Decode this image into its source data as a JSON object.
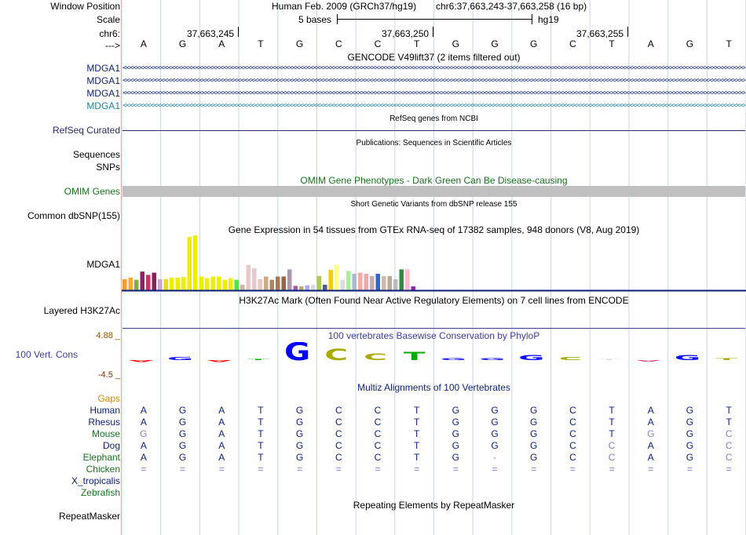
{
  "colors": {
    "grid": "#c8d4ec",
    "gene_dark": "#0a1e78",
    "gene_light": "#1a7fa0",
    "omim": "#c0c0c0",
    "phylop_label": "#3d3d9e",
    "refseq_label": "#28286e",
    "omim_label": "#17711d",
    "gaps_label": "#d08a00",
    "phylop_max": "#8a5500",
    "phylop_min": "#8a2b00"
  },
  "labels": {
    "window_position": "Window Position",
    "scale": "Scale",
    "chr": "chr6:",
    "arrow": "--->",
    "mdga1": "MDGA1",
    "refseq": "RefSeq Curated",
    "sequences": "Sequences",
    "snps": "SNPs",
    "omim": "OMIM Genes",
    "common_dbsnp": "Common dbSNP(155)",
    "gtex_gene": "MDGA1",
    "layered": "Layered H3K27Ac",
    "phylop_max": "4.88 _",
    "phylop_track": "100 Vert. Cons",
    "phylop_min": "-4.5 _",
    "gaps": "Gaps",
    "repeatmasker": "RepeatMasker"
  },
  "species": [
    {
      "name": "Human",
      "color": "#0a1e78"
    },
    {
      "name": "Rhesus",
      "color": "#0a1e78"
    },
    {
      "name": "Mouse",
      "color": "#17711d"
    },
    {
      "name": "Dog",
      "color": "#0a1e78"
    },
    {
      "name": "Elephant",
      "color": "#17711d"
    },
    {
      "name": "Chicken",
      "color": "#17711d"
    },
    {
      "name": "X_tropicalis",
      "color": "#0a1e78"
    },
    {
      "name": "Zebrafish",
      "color": "#17711d"
    }
  ],
  "header": {
    "assembly": "Human Feb. 2009 (GRCh37/hg19)",
    "position": "chr6:37,663,243-37,663,258 (16 bp)",
    "scale_text": "5 bases",
    "scale_db": "hg19",
    "coords": [
      "37,663,245",
      "37,663,250",
      "37,663,255"
    ]
  },
  "bases": [
    "A",
    "G",
    "A",
    "T",
    "G",
    "C",
    "C",
    "T",
    "G",
    "G",
    "G",
    "C",
    "T",
    "A",
    "G",
    "T"
  ],
  "tracks": {
    "gencode_title": "GENCODE V49lift37 (2 items filtered out)",
    "refseq_title": "RefSeq genes from NCBI",
    "publications_title": "Publications: Sequences in Scientific Articles",
    "omim_title": "OMIM Gene Phenotypes - Dark Green Can Be Disease-causing",
    "dbsnp_title": "Short Genetic Variants from dbSNP release 155",
    "gtex_title": "Gene Expression in 54 tissues from GTEx RNA-seq of 17382 samples, 948 donors (V8, Aug 2019)",
    "h3k27ac_title": "H3K27Ac Mark (Often Found Near Active Regulatory Elements) on 7 cell lines from ENCODE",
    "phylop_title": "100 vertebrates Basewise Conservation by PhyloP",
    "multiz_title": "Multiz Alignments of 100 Vertebrates",
    "repeat_title": "Repeating Elements by RepeatMasker"
  },
  "gtex_bars": [
    {
      "v": 0.2,
      "c": "#ff9933"
    },
    {
      "v": 0.23,
      "c": "#ffaa33"
    },
    {
      "v": 0.19,
      "c": "#88aa44"
    },
    {
      "v": 0.34,
      "c": "#8e2266"
    },
    {
      "v": 0.28,
      "c": "#cc3366"
    },
    {
      "v": 0.32,
      "c": "#882255"
    },
    {
      "v": 0.2,
      "c": "#c7a3e0"
    },
    {
      "v": 0.2,
      "c": "#eedd00"
    },
    {
      "v": 0.23,
      "c": "#eeee00"
    },
    {
      "v": 0.23,
      "c": "#eeee00"
    },
    {
      "v": 0.24,
      "c": "#eeee00"
    },
    {
      "v": 0.97,
      "c": "#eeee00"
    },
    {
      "v": 1.0,
      "c": "#eeee00"
    },
    {
      "v": 0.25,
      "c": "#eeee00"
    },
    {
      "v": 0.22,
      "c": "#eeee00"
    },
    {
      "v": 0.25,
      "c": "#eeee00"
    },
    {
      "v": 0.25,
      "c": "#eeee00"
    },
    {
      "v": 0.19,
      "c": "#eeee00"
    },
    {
      "v": 0.22,
      "c": "#eeee00"
    },
    {
      "v": 0.19,
      "c": "#44ee33"
    },
    {
      "v": 0.1,
      "c": "#c8b99a"
    },
    {
      "v": 0.46,
      "c": "#e8c8c8"
    },
    {
      "v": 0.4,
      "c": "#e8c8c8"
    },
    {
      "v": 0.2,
      "c": "#e8c8c8"
    },
    {
      "v": 0.25,
      "c": "#ccaa88"
    },
    {
      "v": 0.19,
      "c": "#aa8866"
    },
    {
      "v": 0.25,
      "c": "#aa7755"
    },
    {
      "v": 0.25,
      "c": "#996644"
    },
    {
      "v": 0.38,
      "c": "#aa99aa"
    },
    {
      "v": 0.08,
      "c": "#aa55aa"
    },
    {
      "v": 0.07,
      "c": "#bbaa66"
    },
    {
      "v": 0.09,
      "c": "#aaaaff"
    },
    {
      "v": 0.1,
      "c": "#dddddd"
    },
    {
      "v": 0.26,
      "c": "#aacc55"
    },
    {
      "v": 0.1,
      "c": "#555599"
    },
    {
      "v": 0.37,
      "c": "#f5cc00"
    },
    {
      "v": 0.46,
      "c": "#ffff88"
    },
    {
      "v": 0.19,
      "c": "#dddddd"
    },
    {
      "v": 0.35,
      "c": "#aaee99"
    },
    {
      "v": 0.3,
      "c": "#aabbcc"
    },
    {
      "v": 0.32,
      "c": "#ffaaaa"
    },
    {
      "v": 0.3,
      "c": "#eeaaaa"
    },
    {
      "v": 0.26,
      "c": "#ccaaaa"
    },
    {
      "v": 0.3,
      "c": "#3366cc"
    },
    {
      "v": 0.26,
      "c": "#ccbbaa"
    },
    {
      "v": 0.26,
      "c": "#bbaa99"
    },
    {
      "v": 0.2,
      "c": "#bbbbbb"
    },
    {
      "v": 0.38,
      "c": "#338844"
    },
    {
      "v": 0.38,
      "c": "#ffbbcc"
    },
    {
      "v": 0.07,
      "c": "#9922aa"
    }
  ],
  "phylop": [
    {
      "score": -0.6,
      "color": "#ff0000"
    },
    {
      "score": 0.8,
      "color": "#0000ff"
    },
    {
      "score": -0.6,
      "color": "#ff0000"
    },
    {
      "score": 0.2,
      "color": "#00aa00"
    },
    {
      "score": 4.8,
      "color": "#0000ff"
    },
    {
      "score": 3.0,
      "color": "#aaaa00"
    },
    {
      "score": 1.8,
      "color": "#aaaa00"
    },
    {
      "score": 2.2,
      "color": "#00aa00"
    },
    {
      "score": 0.6,
      "color": "#0000ff"
    },
    {
      "score": 0.6,
      "color": "#0000ff"
    },
    {
      "score": 1.4,
      "color": "#0000ff"
    },
    {
      "score": 0.8,
      "color": "#aaaa00"
    },
    {
      "score": 0.0,
      "color": "#dddddd"
    },
    {
      "score": -0.4,
      "color": "#cc3377"
    },
    {
      "score": 1.4,
      "color": "#0000ff"
    },
    {
      "score": 0.5,
      "color": "#aaaa00"
    }
  ],
  "alignments": {
    "Human": [
      "A",
      "G",
      "A",
      "T",
      "G",
      "C",
      "C",
      "T",
      "G",
      "G",
      "G",
      "C",
      "T",
      "A",
      "G",
      "T"
    ],
    "Rhesus": [
      "A",
      "G",
      "A",
      "T",
      "G",
      "C",
      "C",
      "T",
      "G",
      "G",
      "G",
      "C",
      "T",
      "A",
      "G",
      "T"
    ],
    "Mouse": [
      "G",
      "G",
      "A",
      "T",
      "G",
      "C",
      "C",
      "T",
      "G",
      "G",
      "G",
      "C",
      "T",
      "G",
      "G",
      "C"
    ],
    "Dog": [
      "A",
      "G",
      "A",
      "T",
      "G",
      "C",
      "C",
      "T",
      "G",
      "G",
      "G",
      "C",
      "C",
      "A",
      "G",
      "C"
    ],
    "Elephant": [
      "A",
      "G",
      "A",
      "T",
      "G",
      "C",
      "C",
      "T",
      "G",
      "-",
      "G",
      "C",
      "C",
      "A",
      "G",
      "C"
    ],
    "Chicken": [
      "=",
      "=",
      "=",
      "=",
      "=",
      "=",
      "=",
      "=",
      "=",
      "=",
      "=",
      "=",
      "=",
      "=",
      "=",
      "="
    ]
  },
  "alignment_diff": {
    "Mouse": [
      0,
      13,
      15
    ],
    "Dog": [
      12,
      15
    ],
    "Elephant": [
      9,
      12,
      15
    ]
  },
  "gene_rows": [
    {
      "label": "MDGA1",
      "color": "#0a1e78"
    },
    {
      "label": "MDGA1",
      "color": "#0a1e78"
    },
    {
      "label": "MDGA1",
      "color": "#0a1e78"
    },
    {
      "label": "MDGA1",
      "color": "#1a7fa0"
    }
  ]
}
